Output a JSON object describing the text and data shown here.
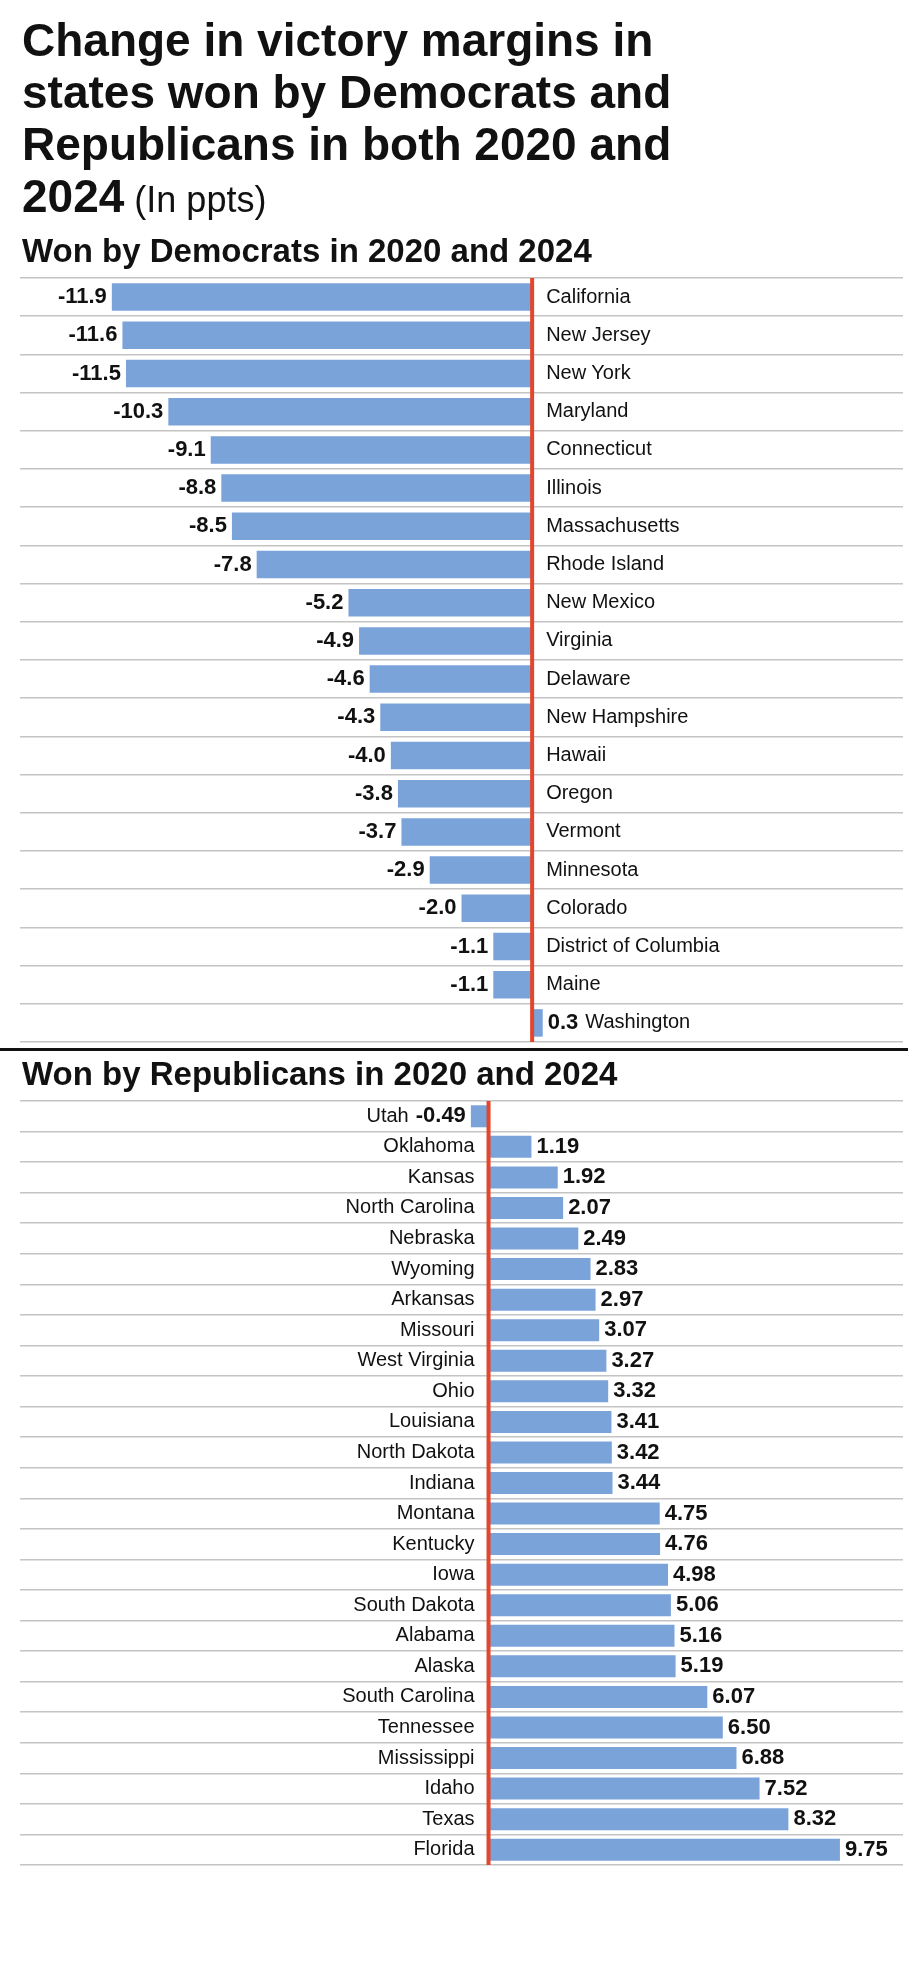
{
  "chart_data": [
    {
      "type": "bar",
      "orientation": "horizontal",
      "title": "Change in victory margins in states won by Democrats and Republicans in both 2020 and 2024",
      "annotations": [
        "(In ppts)"
      ],
      "subtitle": "Won by Democrats in 2020 and 2024",
      "categories": [
        "California",
        "New Jersey",
        "New York",
        "Maryland",
        "Connecticut",
        "Illinois",
        "Massachusetts",
        "Rhode Island",
        "New Mexico",
        "Virginia",
        "Delaware",
        "New Hampshire",
        "Hawaii",
        "Oregon",
        "Vermont",
        "Minnesota",
        "Colorado",
        "District of Columbia",
        "Maine",
        "Washington"
      ],
      "values": [
        -11.9,
        -11.6,
        -11.5,
        -10.3,
        -9.1,
        -8.8,
        -8.5,
        -7.8,
        -5.2,
        -4.9,
        -4.6,
        -4.3,
        -4.0,
        -3.8,
        -3.7,
        -2.9,
        -2.0,
        -1.1,
        -1.1,
        0.3
      ],
      "value_labels": [
        "-11.9",
        "-11.6",
        "-11.5",
        "-10.3",
        "-9.1",
        "-8.8",
        "-8.5",
        "-7.8",
        "-5.2",
        "-4.9",
        "-4.6",
        "-4.3",
        "-4.0",
        "-3.8",
        "-3.7",
        "-2.9",
        "-2.0",
        "-1.1",
        "-1.1",
        "0.3"
      ],
      "color": "#7aa3da",
      "xlim": [
        -14.5,
        10.5
      ],
      "grid": "y",
      "tick_labels": "y"
    },
    {
      "type": "bar",
      "orientation": "horizontal",
      "title": "Won by Republicans in 2020 and 2024",
      "categories": [
        "Utah",
        "Oklahoma",
        "Kansas",
        "North Carolina",
        "Nebraska",
        "Wyoming",
        "Arkansas",
        "Missouri",
        "West Virginia",
        "Ohio",
        "Louisiana",
        "North Dakota",
        "Indiana",
        "Montana",
        "Kentucky",
        "Iowa",
        "South Dakota",
        "Alabama",
        "Alaska",
        "South Carolina",
        "Tennessee",
        "Mississippi",
        "Idaho",
        "Texas",
        "Florida"
      ],
      "values": [
        -0.49,
        1.19,
        1.92,
        2.07,
        2.49,
        2.83,
        2.97,
        3.07,
        3.27,
        3.32,
        3.41,
        3.42,
        3.44,
        4.75,
        4.76,
        4.98,
        5.06,
        5.16,
        5.19,
        6.07,
        6.5,
        6.88,
        7.52,
        8.32,
        9.75
      ],
      "value_labels": [
        "-0.49",
        "1.19",
        "1.92",
        "2.07",
        "2.49",
        "2.83",
        "2.97",
        "3.07",
        "3.27",
        "3.32",
        "3.41",
        "3.42",
        "3.44",
        "4.75",
        "4.76",
        "4.98",
        "5.06",
        "5.16",
        "5.19",
        "6.07",
        "6.50",
        "6.88",
        "7.52",
        "8.32",
        "9.75"
      ],
      "color": "#7aa3da",
      "xlim": [
        -13,
        11.5
      ],
      "grid": "y",
      "tick_labels": "y"
    }
  ]
}
